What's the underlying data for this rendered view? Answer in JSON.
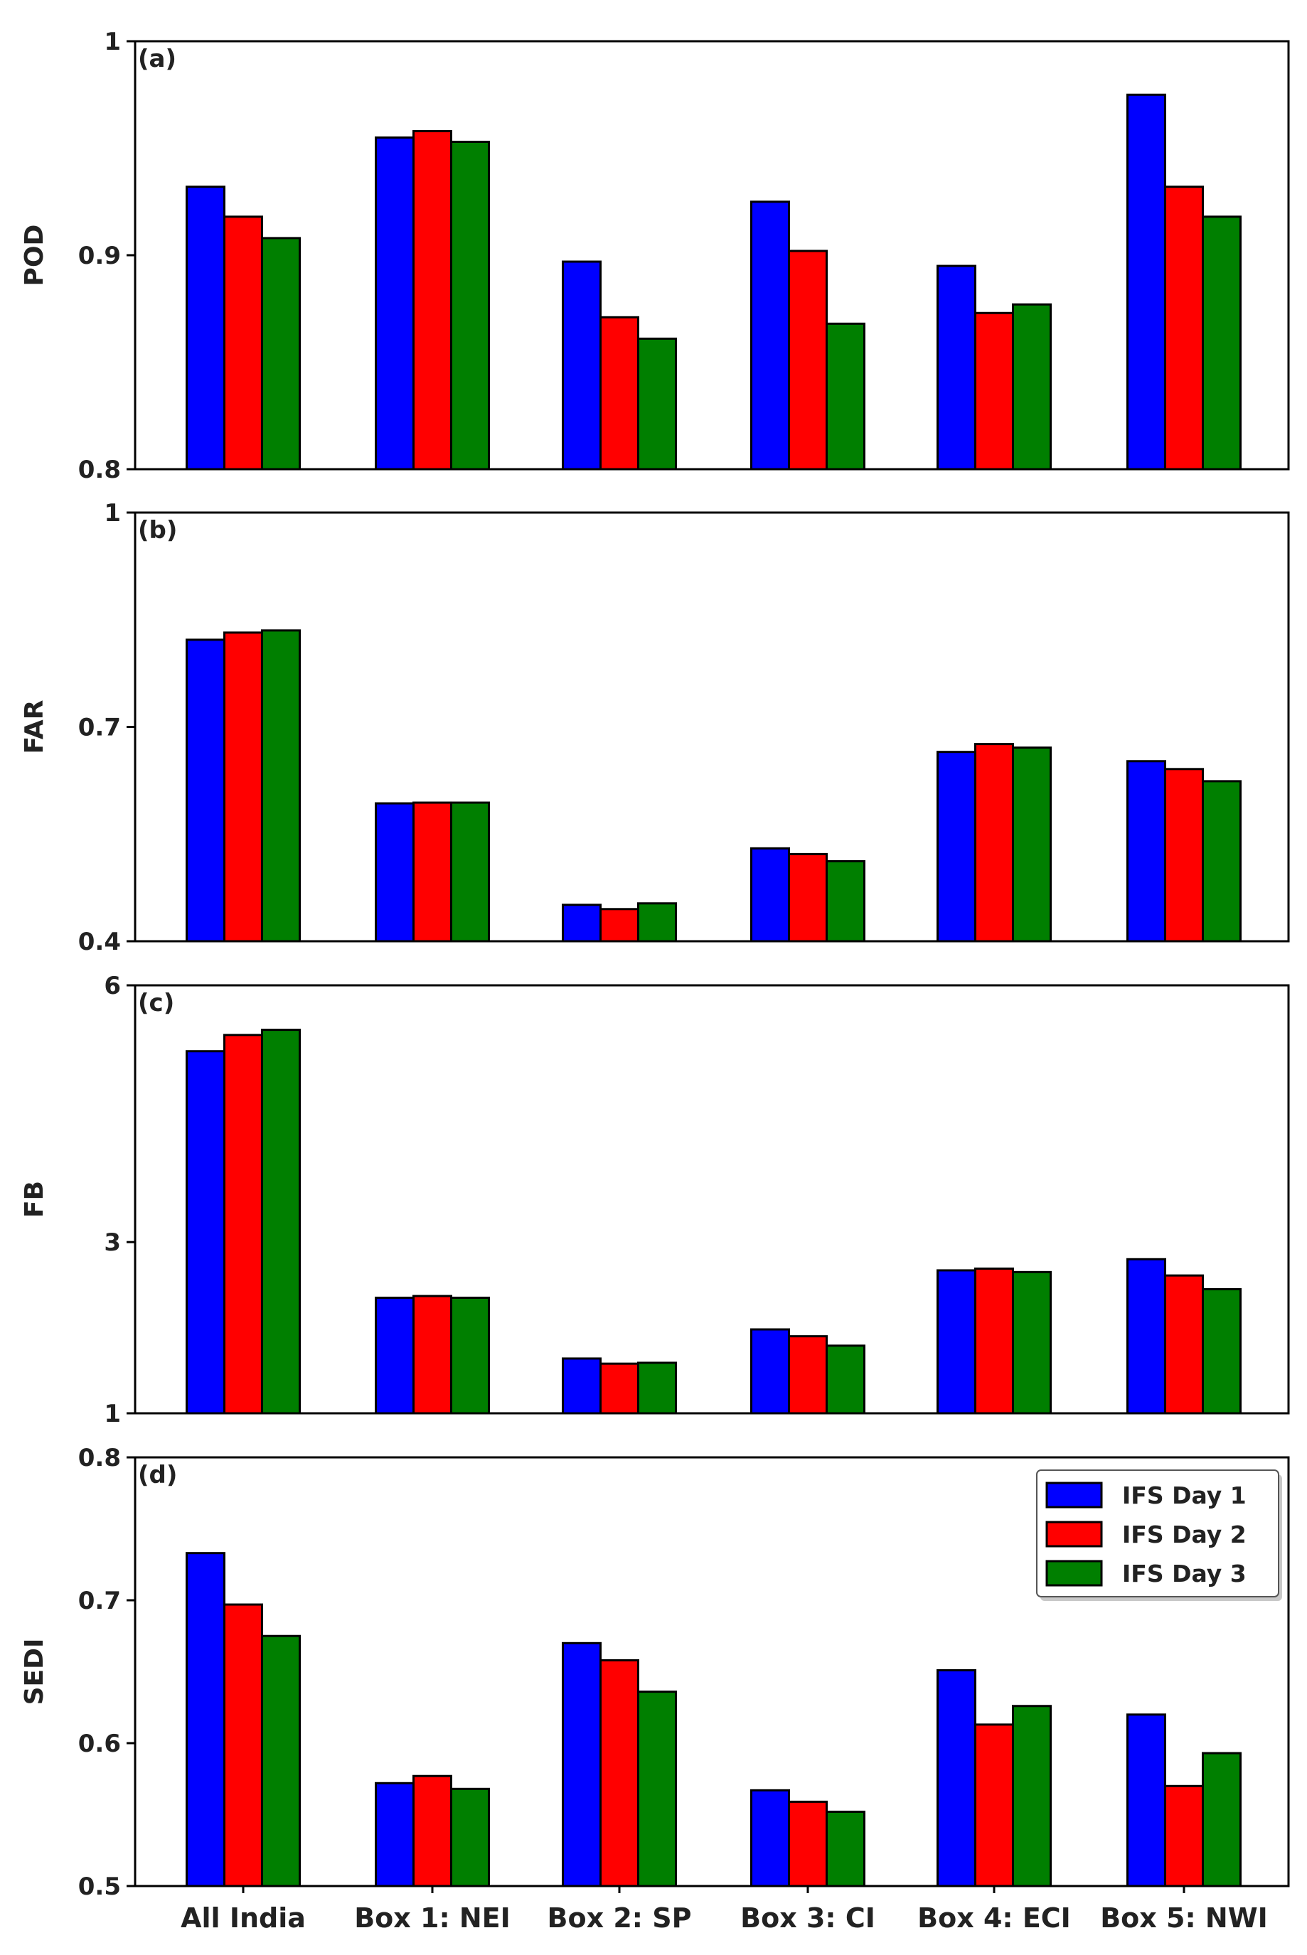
{
  "chart_data": {
    "type": "bar",
    "categories": [
      "All India",
      "Box 1: NEI",
      "Box 2: SP",
      "Box 3: CI",
      "Box 4: ECI",
      "Box 5: NWI"
    ],
    "series_names": [
      "IFS Day 1",
      "IFS Day 2",
      "IFS Day 3"
    ],
    "colors": [
      "#0000ff",
      "#ff0000",
      "#007f00"
    ],
    "legend": {
      "position": "top-right",
      "entries": [
        "IFS Day 1",
        "IFS Day 2",
        "IFS Day 3"
      ]
    },
    "panels": [
      {
        "tag": "(a)",
        "ylabel": "POD",
        "ylim": [
          0.8,
          1
        ],
        "ticks": [
          0.8,
          0.9,
          1
        ],
        "tick_labels": [
          "0.8",
          "0.9",
          "1"
        ],
        "series": [
          {
            "name": "IFS Day 1",
            "values": [
              0.932,
              0.955,
              0.897,
              0.925,
              0.895,
              0.975
            ]
          },
          {
            "name": "IFS Day 2",
            "values": [
              0.918,
              0.958,
              0.871,
              0.902,
              0.873,
              0.932
            ]
          },
          {
            "name": "IFS Day 3",
            "values": [
              0.908,
              0.953,
              0.861,
              0.868,
              0.877,
              0.918
            ]
          }
        ]
      },
      {
        "tag": "(b)",
        "ylabel": "FAR",
        "ylim": [
          0.4,
          1
        ],
        "ticks": [
          0.4,
          0.7,
          1
        ],
        "tick_labels": [
          "0.4",
          "0.7",
          "1"
        ],
        "series": [
          {
            "name": "IFS Day 1",
            "values": [
              0.822,
              0.593,
              0.451,
              0.53,
              0.665,
              0.652
            ]
          },
          {
            "name": "IFS Day 2",
            "values": [
              0.832,
              0.594,
              0.445,
              0.522,
              0.676,
              0.641
            ]
          },
          {
            "name": "IFS Day 3",
            "values": [
              0.835,
              0.594,
              0.453,
              0.512,
              0.671,
              0.624
            ]
          }
        ]
      },
      {
        "tag": "(c)",
        "ylabel": "FB",
        "ylim": [
          1,
          6
        ],
        "ticks": [
          1,
          3,
          6
        ],
        "tick_labels": [
          "1",
          "3",
          "6"
        ],
        "series": [
          {
            "name": "IFS Day 1",
            "values": [
              5.23,
              2.35,
              1.64,
              1.98,
              2.67,
              2.8
            ]
          },
          {
            "name": "IFS Day 2",
            "values": [
              5.42,
              2.37,
              1.58,
              1.9,
              2.69,
              2.61
            ]
          },
          {
            "name": "IFS Day 3",
            "values": [
              5.48,
              2.35,
              1.59,
              1.79,
              2.65,
              2.45
            ]
          }
        ]
      },
      {
        "tag": "(d)",
        "ylabel": "SEDI",
        "ylim": [
          0.5,
          0.8
        ],
        "ticks": [
          0.5,
          0.6,
          0.7,
          0.8
        ],
        "tick_labels": [
          "0.5",
          "0.6",
          "0.7",
          "0.8"
        ],
        "series": [
          {
            "name": "IFS Day 1",
            "values": [
              0.733,
              0.572,
              0.67,
              0.567,
              0.651,
              0.62
            ]
          },
          {
            "name": "IFS Day 2",
            "values": [
              0.697,
              0.577,
              0.658,
              0.559,
              0.613,
              0.57
            ]
          },
          {
            "name": "IFS Day 3",
            "values": [
              0.675,
              0.568,
              0.636,
              0.552,
              0.626,
              0.593
            ]
          }
        ]
      }
    ]
  }
}
